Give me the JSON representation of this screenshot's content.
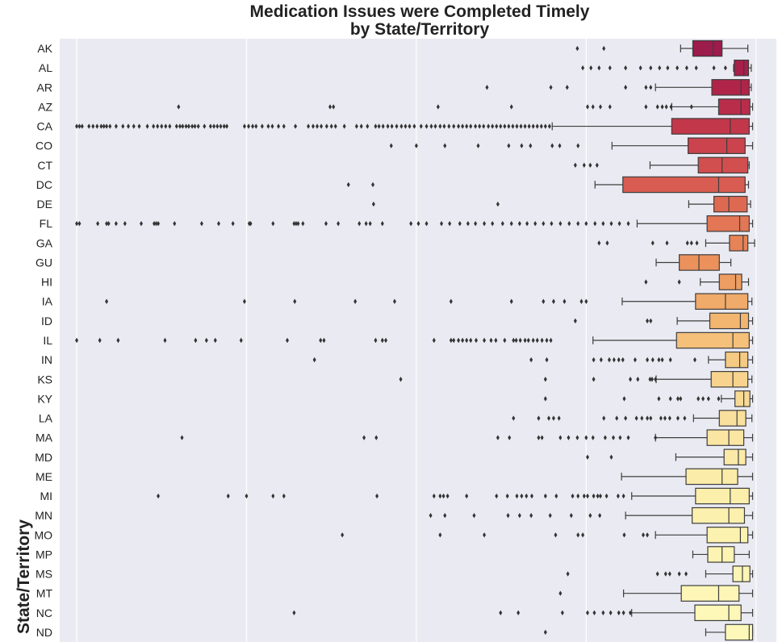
{
  "chart_data": {
    "type": "boxplot",
    "orientation": "horizontal",
    "title": [
      "Medication Issues were Completed Timely",
      "by State/Territory"
    ],
    "ylabel": "State/Territory",
    "xlabel": "",
    "x_tick_labels_visible": false,
    "grid": "vertical",
    "categories": [
      "AK",
      "AL",
      "AR",
      "AZ",
      "CA",
      "CO",
      "CT",
      "DC",
      "DE",
      "FL",
      "GA",
      "GU",
      "HI",
      "IA",
      "ID",
      "IL",
      "IN",
      "KS",
      "KY",
      "LA",
      "MA",
      "MD",
      "ME",
      "MI",
      "MN",
      "MO",
      "MP",
      "MS",
      "MT",
      "NC",
      "ND"
    ],
    "colors": [
      "#9c1c4b",
      "#a71f4a",
      "#b12449",
      "#ba2d4a",
      "#c3374b",
      "#cb434d",
      "#d24f4f",
      "#d85c51",
      "#de6952",
      "#e37654",
      "#e78357",
      "#eb915c",
      "#ee9e62",
      "#f0aa69",
      "#f2b671",
      "#f4c07a",
      "#f5ca83",
      "#f7d38d",
      "#f8da95",
      "#f9e09c",
      "#fae5a2",
      "#fbe9a7",
      "#fbeca9",
      "#fceeab",
      "#fcf0ae",
      "#fcf2b0",
      "#fdf4b3",
      "#fdf5b5",
      "#fdf6b6",
      "#fdf7b8",
      "#fdf8ba"
    ],
    "boxes": [
      {
        "lo": 0.889,
        "q1": 0.907,
        "med": 0.937,
        "q3": 0.95,
        "hi": 0.988,
        "outliers": [
          0.737,
          0.776
        ]
      },
      {
        "lo": 0.967,
        "q1": 0.968,
        "med": 0.982,
        "q3": 0.989,
        "hi": 0.993,
        "outliers": [
          0.745,
          0.757,
          0.769,
          0.785,
          0.808,
          0.83,
          0.845,
          0.858,
          0.87,
          0.884,
          0.898,
          0.912,
          0.938,
          0.955
        ]
      },
      {
        "lo": 0.852,
        "q1": 0.935,
        "med": 0.978,
        "q3": 0.99,
        "hi": 0.993,
        "outliers": [
          0.604,
          0.698,
          0.722,
          0.808,
          0.838,
          0.845
        ]
      },
      {
        "lo": 0.876,
        "q1": 0.945,
        "med": 0.978,
        "q3": 0.991,
        "hi": 0.995,
        "outliers": [
          0.15,
          0.373,
          0.378,
          0.532,
          0.64,
          0.752,
          0.76,
          0.771,
          0.785,
          0.838,
          0.855,
          0.862,
          0.868,
          0.875,
          0.905
        ]
      },
      {
        "lo": 0.7,
        "q1": 0.876,
        "med": 0.962,
        "q3": 0.99,
        "hi": 0.995,
        "outliers": [
          0.0,
          0.004,
          0.008,
          0.018,
          0.024,
          0.03,
          0.036,
          0.04,
          0.044,
          0.049,
          0.058,
          0.068,
          0.076,
          0.084,
          0.092,
          0.104,
          0.113,
          0.119,
          0.125,
          0.131,
          0.137,
          0.147,
          0.152,
          0.156,
          0.161,
          0.165,
          0.17,
          0.174,
          0.179,
          0.188,
          0.197,
          0.202,
          0.207,
          0.212,
          0.217,
          0.221,
          0.247,
          0.253,
          0.259,
          0.264,
          0.273,
          0.282,
          0.288,
          0.297,
          0.305,
          0.322,
          0.341,
          0.348,
          0.354,
          0.36,
          0.368,
          0.375,
          0.381,
          0.394,
          0.412,
          0.419,
          0.428,
          0.44,
          0.445,
          0.451,
          0.458,
          0.464,
          0.471,
          0.478,
          0.484,
          0.49,
          0.497,
          0.507,
          0.515,
          0.522,
          0.528,
          0.535,
          0.541,
          0.548,
          0.555,
          0.562,
          0.568,
          0.574,
          0.58,
          0.587,
          0.593,
          0.599,
          0.606,
          0.612,
          0.618,
          0.624,
          0.63,
          0.636,
          0.642,
          0.648,
          0.654,
          0.66,
          0.666,
          0.672,
          0.678,
          0.684,
          0.69,
          0.696
        ]
      },
      {
        "lo": 0.788,
        "q1": 0.9,
        "med": 0.957,
        "q3": 0.984,
        "hi": 0.995,
        "outliers": [
          0.463,
          0.5,
          0.542,
          0.591,
          0.636,
          0.655,
          0.668,
          0.7,
          0.711,
          0.738
        ]
      },
      {
        "lo": 0.844,
        "q1": 0.915,
        "med": 0.95,
        "q3": 0.988,
        "hi": 0.99,
        "outliers": [
          0.734,
          0.747,
          0.756,
          0.766
        ]
      },
      {
        "lo": 0.763,
        "q1": 0.804,
        "med": 0.945,
        "q3": 0.984,
        "hi": 0.989,
        "outliers": [
          0.4,
          0.436
        ]
      },
      {
        "lo": 0.901,
        "q1": 0.938,
        "med": 0.96,
        "q3": 0.987,
        "hi": 0.992,
        "outliers": [
          0.437,
          0.62
        ]
      },
      {
        "lo": 0.825,
        "q1": 0.928,
        "med": 0.976,
        "q3": 0.99,
        "hi": 0.995,
        "outliers": [
          0.0,
          0.004,
          0.031,
          0.044,
          0.047,
          0.058,
          0.071,
          0.095,
          0.114,
          0.117,
          0.12,
          0.144,
          0.184,
          0.209,
          0.23,
          0.254,
          0.256,
          0.289,
          0.32,
          0.323,
          0.326,
          0.333,
          0.367,
          0.385,
          0.416,
          0.426,
          0.432,
          0.45,
          0.492,
          0.503,
          0.515,
          0.537,
          0.549,
          0.564,
          0.576,
          0.587,
          0.6,
          0.612,
          0.627,
          0.64,
          0.652,
          0.663,
          0.675,
          0.687,
          0.699,
          0.712,
          0.725,
          0.738,
          0.75,
          0.763,
          0.775,
          0.787,
          0.799,
          0.812
        ]
      },
      {
        "lo": 0.926,
        "q1": 0.961,
        "med": 0.981,
        "q3": 0.988,
        "hi": 0.998,
        "outliers": [
          0.769,
          0.781,
          0.848,
          0.869,
          0.899,
          0.905,
          0.913
        ]
      },
      {
        "lo": 0.853,
        "q1": 0.887,
        "med": 0.916,
        "q3": 0.946,
        "hi": 0.963,
        "outliers": []
      },
      {
        "lo": 0.918,
        "q1": 0.946,
        "med": 0.97,
        "q3": 0.979,
        "hi": 0.989,
        "outliers": [
          0.838,
          0.887
        ]
      },
      {
        "lo": 0.803,
        "q1": 0.911,
        "med": 0.955,
        "q3": 0.988,
        "hi": 0.994,
        "outliers": [
          0.044,
          0.247,
          0.321,
          0.41,
          0.468,
          0.551,
          0.64,
          0.687,
          0.702,
          0.718,
          0.743,
          0.75
        ]
      },
      {
        "lo": 0.884,
        "q1": 0.932,
        "med": 0.977,
        "q3": 0.989,
        "hi": 0.995,
        "outliers": [
          0.734,
          0.84,
          0.845
        ]
      },
      {
        "lo": 0.76,
        "q1": 0.883,
        "med": 0.966,
        "q3": 0.99,
        "hi": 0.995,
        "outliers": [
          0.0,
          0.034,
          0.061,
          0.13,
          0.175,
          0.191,
          0.204,
          0.242,
          0.31,
          0.359,
          0.364,
          0.44,
          0.45,
          0.455,
          0.526,
          0.551,
          0.555,
          0.562,
          0.568,
          0.574,
          0.58,
          0.588,
          0.6,
          0.61,
          0.617,
          0.63,
          0.643,
          0.647,
          0.653,
          0.66,
          0.665,
          0.672,
          0.678,
          0.685,
          0.692,
          0.698
        ]
      },
      {
        "lo": 0.93,
        "q1": 0.955,
        "med": 0.976,
        "q3": 0.988,
        "hi": 0.995,
        "outliers": [
          0.35,
          0.669,
          0.692,
          0.761,
          0.772,
          0.784,
          0.791,
          0.798,
          0.804,
          0.822,
          0.84,
          0.848,
          0.857,
          0.862,
          0.874,
          0.91
        ]
      },
      {
        "lo": 0.853,
        "q1": 0.934,
        "med": 0.966,
        "q3": 0.988,
        "hi": 0.994,
        "outliers": [
          0.477,
          0.69,
          0.761,
          0.815,
          0.826,
          0.844,
          0.847,
          0.852
        ]
      },
      {
        "lo": 0.949,
        "q1": 0.969,
        "med": 0.982,
        "q3": 0.991,
        "hi": 0.995,
        "outliers": [
          0.69,
          0.806,
          0.857,
          0.874,
          0.885,
          0.889,
          0.915,
          0.922,
          0.93,
          0.945
        ]
      },
      {
        "lo": 0.908,
        "q1": 0.946,
        "med": 0.972,
        "q3": 0.985,
        "hi": 0.994,
        "outliers": [
          0.643,
          0.68,
          0.695,
          0.702,
          0.71,
          0.776,
          0.795,
          0.808,
          0.824,
          0.832,
          0.84,
          0.845,
          0.86,
          0.866,
          0.873,
          0.885,
          0.895
        ]
      },
      {
        "lo": 0.852,
        "q1": 0.928,
        "med": 0.96,
        "q3": 0.982,
        "hi": 0.995,
        "outliers": [
          0.155,
          0.423,
          0.441,
          0.62,
          0.637,
          0.68,
          0.685,
          0.712,
          0.724,
          0.737,
          0.75,
          0.76,
          0.778,
          0.79,
          0.8,
          0.812,
          0.852
        ]
      },
      {
        "lo": 0.882,
        "q1": 0.953,
        "med": 0.974,
        "q3": 0.985,
        "hi": 0.995,
        "outliers": [
          0.752,
          0.787
        ]
      },
      {
        "lo": 0.802,
        "q1": 0.897,
        "med": 0.95,
        "q3": 0.973,
        "hi": 0.995,
        "outliers": []
      },
      {
        "lo": 0.817,
        "q1": 0.911,
        "med": 0.962,
        "q3": 0.99,
        "hi": 0.995,
        "outliers": [
          0.12,
          0.223,
          0.25,
          0.289,
          0.305,
          0.442,
          0.526,
          0.535,
          0.54,
          0.546,
          0.574,
          0.618,
          0.634,
          0.648,
          0.655,
          0.662,
          0.67,
          0.69,
          0.706,
          0.73,
          0.738,
          0.747,
          0.752,
          0.761,
          0.767,
          0.771,
          0.78,
          0.797,
          0.805
        ]
      },
      {
        "lo": 0.808,
        "q1": 0.906,
        "med": 0.96,
        "q3": 0.983,
        "hi": 0.995,
        "outliers": [
          0.521,
          0.542,
          0.585,
          0.635,
          0.652,
          0.669,
          0.697,
          0.728,
          0.756,
          0.77
        ]
      },
      {
        "lo": 0.852,
        "q1": 0.928,
        "med": 0.977,
        "q3": 0.988,
        "hi": 0.995,
        "outliers": [
          0.391,
          0.535,
          0.6,
          0.705,
          0.738,
          0.745,
          0.806,
          0.834,
          0.84
        ]
      },
      {
        "lo": 0.907,
        "q1": 0.929,
        "med": 0.95,
        "q3": 0.968,
        "hi": 0.99,
        "outliers": []
      },
      {
        "lo": 0.926,
        "q1": 0.966,
        "med": 0.98,
        "q3": 0.991,
        "hi": 0.995,
        "outliers": [
          0.723,
          0.855,
          0.867,
          0.873,
          0.887,
          0.897
        ]
      },
      {
        "lo": 0.805,
        "q1": 0.89,
        "med": 0.945,
        "q3": 0.975,
        "hi": 0.995,
        "outliers": [
          0.712
        ]
      },
      {
        "lo": 0.817,
        "q1": 0.91,
        "med": 0.96,
        "q3": 0.978,
        "hi": 0.995,
        "outliers": [
          0.32,
          0.624,
          0.65,
          0.715,
          0.752,
          0.762,
          0.775,
          0.786,
          0.798,
          0.805,
          0.815
        ]
      },
      {
        "lo": 0.926,
        "q1": 0.955,
        "med": 0.99,
        "q3": 0.995,
        "hi": 0.995,
        "outliers": [
          0.69
        ]
      }
    ]
  }
}
